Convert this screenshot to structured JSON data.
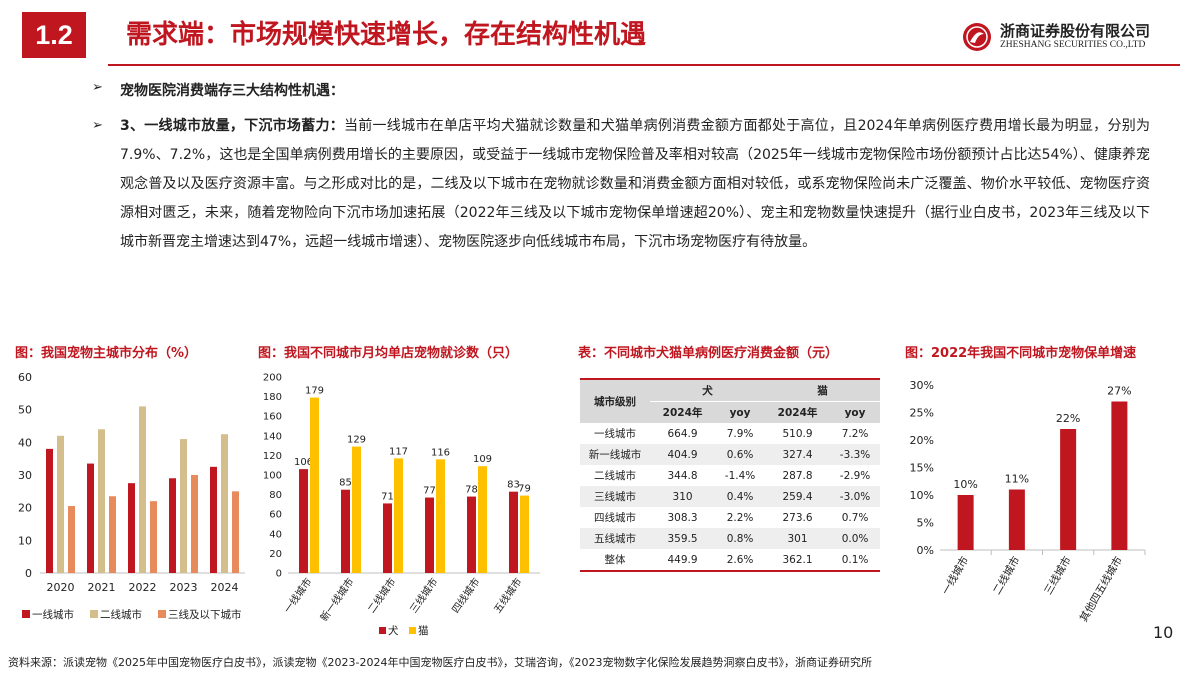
{
  "header": {
    "section_number": "1.2",
    "title": "需求端：市场规模快速增长，存在结构性机遇",
    "brand_name": "浙商证券股份有限公司",
    "brand_en": "ZHESHANG SECURITIES CO.,LTD"
  },
  "bullets": [
    {
      "text": "宠物医院消费端存三大结构性机遇："
    },
    {
      "lead": "3、一线城市放量，下沉市场蓄力：",
      "text": "当前一线城市在单店平均犬猫就诊数量和犬猫单病例消费金额方面都处于高位，且2024年单病例医疗费用增长最为明显，分别为7.9%、7.2%，这也是全国单病例费用增长的主要原因，或受益于一线城市宠物保险普及率相对较高（2025年一线城市宠物保险市场份额预计占比达54%）、健康养宠观念普及以及医疗资源丰富。与之形成对比的是，二线及以下城市在宠物就诊数量和消费金额方面相对较低，或系宠物保险尚未广泛覆盖、物价水平较低、宠物医疗资源相对匮乏，未来，随着宠物险向下沉市场加速拓展（2022年三线及以下城市宠物保单增速超20%）、宠主和宠物数量快速提升（据行业白皮书，2023年三线及以下城市新晋宠主增速达到47%，远超一线城市增速）、宠物医院逐步向低线城市布局，下沉市场宠物医疗有待放量。"
    }
  ],
  "captions": {
    "c1": "图：我国宠物主城市分布（%）",
    "c2": "图：我国不同城市月均单店宠物就诊数（只）",
    "c3": "表：不同城市犬猫单病例医疗消费金额（元）",
    "c4": "图：2022年我国不同城市宠物保单增速"
  },
  "colors": {
    "red": "#c0161f",
    "tan": "#d4bf8c",
    "orange": "#e88b5c",
    "yellow": "#ffc000"
  },
  "chart_data": [
    {
      "type": "bar",
      "categories": [
        "2020",
        "2021",
        "2022",
        "2023",
        "2024"
      ],
      "series": [
        {
          "name": "一线城市",
          "values": [
            38,
            33.5,
            27.5,
            29,
            32.5
          ]
        },
        {
          "name": "二线城市",
          "values": [
            42,
            44,
            51,
            41,
            42.5
          ]
        },
        {
          "name": "三线及以下城市",
          "values": [
            20.5,
            23.5,
            22,
            30,
            25
          ]
        }
      ],
      "ylim": [
        0,
        60
      ],
      "yticks": [
        "0",
        "10",
        "20",
        "30",
        "40",
        "50",
        "60"
      ],
      "legend": "bottom"
    },
    {
      "type": "bar",
      "categories": [
        "一线城市",
        "新一线城市",
        "二线城市",
        "三线城市",
        "四线城市",
        "五线城市"
      ],
      "series": [
        {
          "name": "犬",
          "values": [
            106,
            85,
            71,
            77,
            78,
            83
          ]
        },
        {
          "name": "猫",
          "values": [
            179,
            129,
            117,
            116,
            109,
            79
          ]
        }
      ],
      "ylim": [
        0,
        200
      ],
      "yticks": [
        "0",
        "20",
        "40",
        "60",
        "80",
        "100",
        "120",
        "140",
        "160",
        "180",
        "200"
      ],
      "legend": "bottom"
    },
    {
      "type": "table",
      "header_top": [
        "城市级别",
        "犬",
        "猫"
      ],
      "header_sub": [
        "2024年",
        "yoy",
        "2024年",
        "yoy"
      ],
      "rows": [
        [
          "一线城市",
          "664.9",
          "7.9%",
          "510.9",
          "7.2%"
        ],
        [
          "新一线城市",
          "404.9",
          "0.6%",
          "327.4",
          "-3.3%"
        ],
        [
          "二线城市",
          "344.8",
          "-1.4%",
          "287.8",
          "-2.9%"
        ],
        [
          "三线城市",
          "310",
          "0.4%",
          "259.4",
          "-3.0%"
        ],
        [
          "四线城市",
          "308.3",
          "2.2%",
          "273.6",
          "0.7%"
        ],
        [
          "五线城市",
          "359.5",
          "0.8%",
          "301",
          "0.0%"
        ],
        [
          "整体",
          "449.9",
          "2.6%",
          "362.1",
          "0.1%"
        ]
      ]
    },
    {
      "type": "bar",
      "categories": [
        "一线城市",
        "二线城市",
        "三线城市",
        "其他四五线城市"
      ],
      "values": [
        10,
        11,
        22,
        27
      ],
      "value_labels": [
        "10%",
        "11%",
        "22%",
        "27%"
      ],
      "ylim": [
        0,
        30
      ],
      "yticks": [
        "0%",
        "5%",
        "10%",
        "15%",
        "20%",
        "25%",
        "30%"
      ]
    }
  ],
  "footer": {
    "source": "资料来源：派读宠物《2025年中国宠物医疗白皮书》，派读宠物《2023-2024年中国宠物医疗白皮书》，艾瑞咨询，《2023宠物数字化保险发展趋势洞察白皮书》，浙商证券研究所",
    "page_number": "10"
  }
}
